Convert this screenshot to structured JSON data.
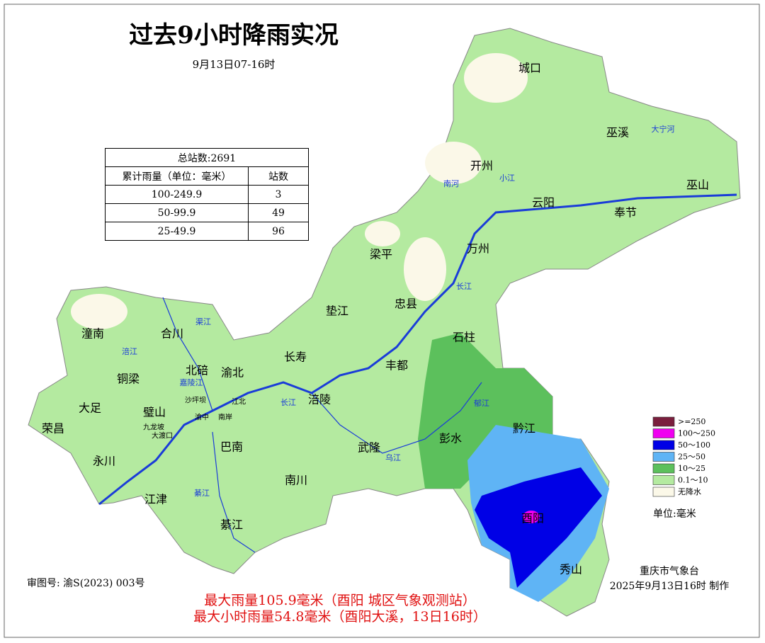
{
  "title": "过去9小时降雨实况",
  "subtitle": "9月13日07-16时",
  "table": {
    "total": "总站数:2691",
    "header": [
      "累计雨量（单位：毫米）",
      "站数"
    ],
    "rows": [
      [
        "100-249.9",
        3
      ],
      [
        "50-99.9",
        49
      ],
      [
        "25-49.9",
        96
      ]
    ]
  },
  "legend": {
    "items": [
      {
        "label": ">=250",
        "color": "#7a1f3d"
      },
      {
        "label": "100～250",
        "color": "#f000f0"
      },
      {
        "label": "50～100",
        "color": "#0000e6"
      },
      {
        "label": "25～50",
        "color": "#5fb4f5"
      },
      {
        "label": "10～25",
        "color": "#5cc05c"
      },
      {
        "label": "0.1～10",
        "color": "#b4eaa0"
      },
      {
        "label": "无降水",
        "color": "#fbf8e8"
      }
    ],
    "unit": "单位:毫米"
  },
  "places": [
    "城口",
    "巫溪",
    "开州",
    "云阳",
    "巫山",
    "奉节",
    "梁平",
    "万州",
    "忠县",
    "垫江",
    "石柱",
    "潼南",
    "合川",
    "长寿",
    "丰都",
    "铜梁",
    "北碚",
    "渝北",
    "涪陵",
    "大足",
    "璧山",
    "荣昌",
    "彭水",
    "黔江",
    "巴南",
    "武隆",
    "永川",
    "南川",
    "江津",
    "酉阳",
    "綦江",
    "秀山"
  ],
  "districts": [
    "沙坪坝",
    "九龙坡",
    "大渡口",
    "南岸",
    "江北",
    "渝中"
  ],
  "rivers": [
    "大宁河",
    "南河",
    "小江",
    "长江",
    "涪江",
    "嘉陵江",
    "长江",
    "乌江",
    "綦江",
    "渠江",
    "郁江"
  ],
  "footer": {
    "approval": "审图号: 渝S(2023) 003号",
    "agency": "重庆市气象台",
    "made": "2025年9月13日16时 制作",
    "max_rain": "最大雨量105.9毫米（酉阳 城区气象观测站）",
    "max_hourly": "最大小时雨量54.8毫米（酉阳大溪，13日16时）"
  }
}
